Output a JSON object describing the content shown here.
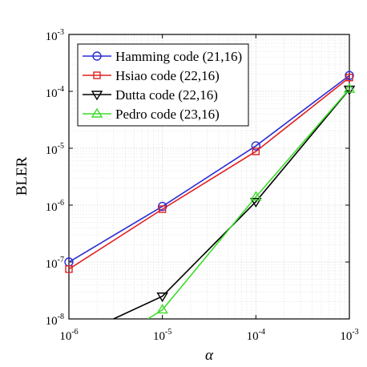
{
  "chart_data": {
    "type": "line",
    "xlabel": "α",
    "ylabel": "BLER",
    "x_scale": "log",
    "y_scale": "log",
    "xlim": [
      1e-06,
      0.001
    ],
    "ylim": [
      1e-08,
      0.001
    ],
    "grid": true,
    "legend_position": "top-left",
    "x_ticks": [
      {
        "value": 1e-06,
        "base": "10",
        "exp": "-6"
      },
      {
        "value": 1e-05,
        "base": "10",
        "exp": "-5"
      },
      {
        "value": 0.0001,
        "base": "10",
        "exp": "-4"
      },
      {
        "value": 0.001,
        "base": "10",
        "exp": "-3"
      }
    ],
    "y_ticks": [
      {
        "value": 1e-08,
        "base": "10",
        "exp": "-8"
      },
      {
        "value": 1e-07,
        "base": "10",
        "exp": "-7"
      },
      {
        "value": 1e-06,
        "base": "10",
        "exp": "-6"
      },
      {
        "value": 1e-05,
        "base": "10",
        "exp": "-5"
      },
      {
        "value": 0.0001,
        "base": "10",
        "exp": "-4"
      },
      {
        "value": 0.001,
        "base": "10",
        "exp": "-3"
      }
    ],
    "series": [
      {
        "name": "Hamming code (21,16)",
        "color": "#2b2bd6",
        "marker": "circle",
        "x": [
          1e-06,
          1e-05,
          0.0001,
          0.001
        ],
        "y": [
          1e-07,
          9.5e-07,
          1.1e-05,
          0.00019
        ]
      },
      {
        "name": "Hsiao code (22,16)",
        "color": "#e02020",
        "marker": "square",
        "x": [
          1e-06,
          1e-05,
          0.0001,
          0.001
        ],
        "y": [
          7.5e-08,
          8.5e-07,
          8.8e-06,
          0.000175
        ]
      },
      {
        "name": "Dutta code (22,16)",
        "color": "#000000",
        "marker": "triangle-down",
        "x": [
          3e-06,
          1e-05,
          0.0001,
          0.001
        ],
        "y": [
          1e-08,
          2.5e-08,
          1.15e-06,
          0.000108
        ]
      },
      {
        "name": "Pedro code (23,16)",
        "color": "#3ddc2a",
        "marker": "triangle-up",
        "x": [
          7e-06,
          1e-05,
          0.0001,
          0.001
        ],
        "y": [
          1e-08,
          1.45e-08,
          1.4e-06,
          0.00011
        ]
      }
    ]
  }
}
